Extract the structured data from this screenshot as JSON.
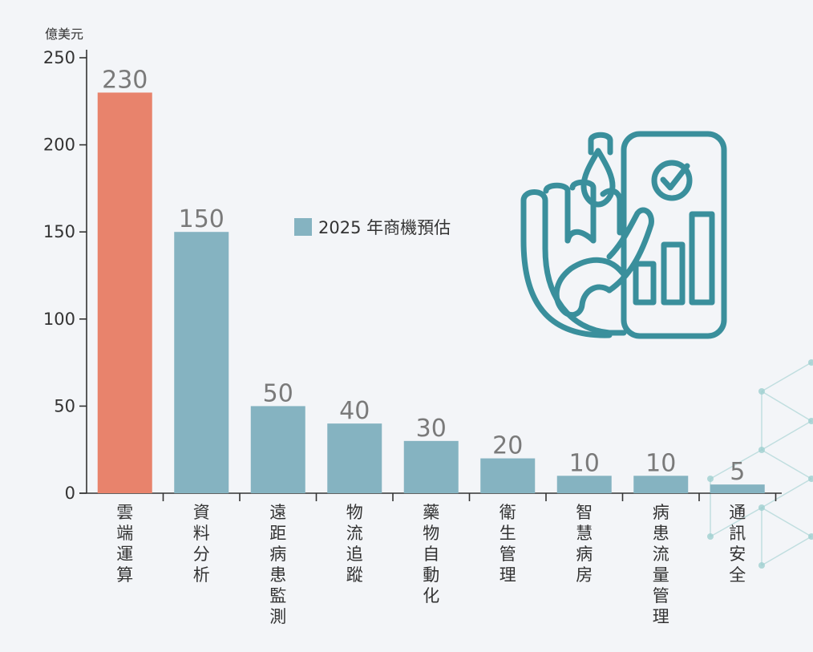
{
  "chart_data": {
    "type": "bar",
    "title": "",
    "xlabel": "",
    "ylabel": "億美元",
    "ylim": [
      0,
      250
    ],
    "yticks": [
      0,
      50,
      100,
      150,
      200,
      250
    ],
    "categories": [
      "雲端運算",
      "資料分析",
      "遠距病患監測",
      "物流追蹤",
      "藥物自動化",
      "衛生管理",
      "智慧病房",
      "病患流量管理",
      "通訊安全"
    ],
    "series": [
      {
        "name": "2025 年商機預估",
        "values": [
          230,
          150,
          50,
          40,
          30,
          20,
          10,
          10,
          5
        ]
      }
    ],
    "highlight_index": 0,
    "legend_position": "center",
    "grid": false,
    "colors": {
      "highlight": "#e8836c",
      "bar": "#85b3c1",
      "axis": "#333333",
      "icon": "#3a8f9c",
      "network": "#9fcfd0"
    },
    "icon": "smartphone-health-hand-icon"
  }
}
